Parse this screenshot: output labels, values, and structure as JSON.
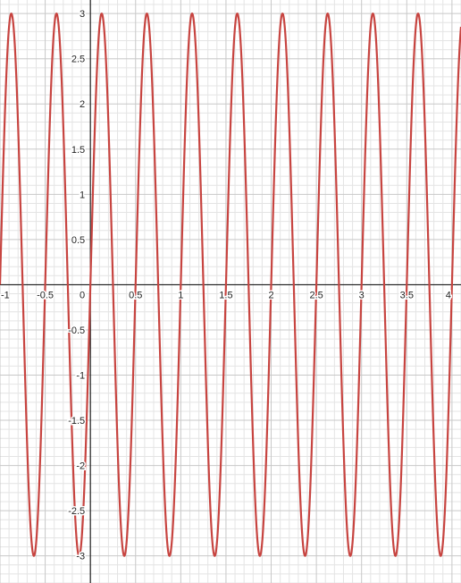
{
  "chart_data": {
    "type": "line",
    "title": "",
    "xlabel": "",
    "ylabel": "",
    "xlim": [
      -1,
      4.1
    ],
    "ylim": [
      -3.3,
      3.15
    ],
    "grid": true,
    "legend": "none",
    "x_ticks": [
      {
        "value": -1,
        "label": "-1"
      },
      {
        "value": -0.5,
        "label": "-0.5"
      },
      {
        "value": 0,
        "label": "0"
      },
      {
        "value": 0.5,
        "label": "0.5"
      },
      {
        "value": 1,
        "label": "1"
      },
      {
        "value": 1.5,
        "label": "1.5"
      },
      {
        "value": 2,
        "label": "2"
      },
      {
        "value": 2.5,
        "label": "2.5"
      },
      {
        "value": 3,
        "label": "3"
      },
      {
        "value": 3.5,
        "label": "3.5"
      },
      {
        "value": 4,
        "label": "4"
      }
    ],
    "y_ticks": [
      {
        "value": 3,
        "label": "3"
      },
      {
        "value": 2.5,
        "label": "2.5"
      },
      {
        "value": 2,
        "label": "2"
      },
      {
        "value": 1.5,
        "label": "1.5"
      },
      {
        "value": 1,
        "label": "1"
      },
      {
        "value": 0.5,
        "label": "0.5"
      },
      {
        "value": -0.5,
        "label": "-0.5"
      },
      {
        "value": -1,
        "label": "-1"
      },
      {
        "value": -1.5,
        "label": "-1.5"
      },
      {
        "value": -2,
        "label": "-2"
      },
      {
        "value": -2.5,
        "label": "-2.5"
      },
      {
        "value": -3,
        "label": "-3"
      }
    ],
    "series": [
      {
        "color": "#c74440",
        "function": "y = 3 sin(4πx)",
        "amplitude": 3,
        "period": 0.5,
        "x": [
          -1,
          -0.875,
          -0.75,
          -0.625,
          -0.5,
          -0.375,
          -0.25,
          -0.125,
          0,
          0.125,
          0.25,
          0.375,
          0.5,
          0.625,
          0.75,
          0.875,
          1,
          1.125,
          1.25,
          1.375,
          1.5,
          1.625,
          1.75,
          1.875,
          2,
          2.125,
          2.25,
          2.375,
          2.5,
          2.625,
          2.75,
          2.875,
          3,
          3.125,
          3.25,
          3.375,
          3.5,
          3.625,
          3.75,
          3.875,
          4
        ],
        "y": [
          0,
          3,
          0,
          -3,
          0,
          3,
          0,
          -3,
          0,
          3,
          0,
          -3,
          0,
          3,
          0,
          -3,
          0,
          3,
          0,
          -3,
          0,
          3,
          0,
          -3,
          0,
          3,
          0,
          -3,
          0,
          3,
          0,
          -3,
          0,
          3,
          0,
          -3,
          0,
          3,
          0,
          -3,
          0
        ]
      }
    ]
  },
  "style": {
    "minor_grid_color": "#e4e4e4",
    "major_grid_color": "#c8c8c8",
    "axis_color": "#1a1a1a"
  }
}
